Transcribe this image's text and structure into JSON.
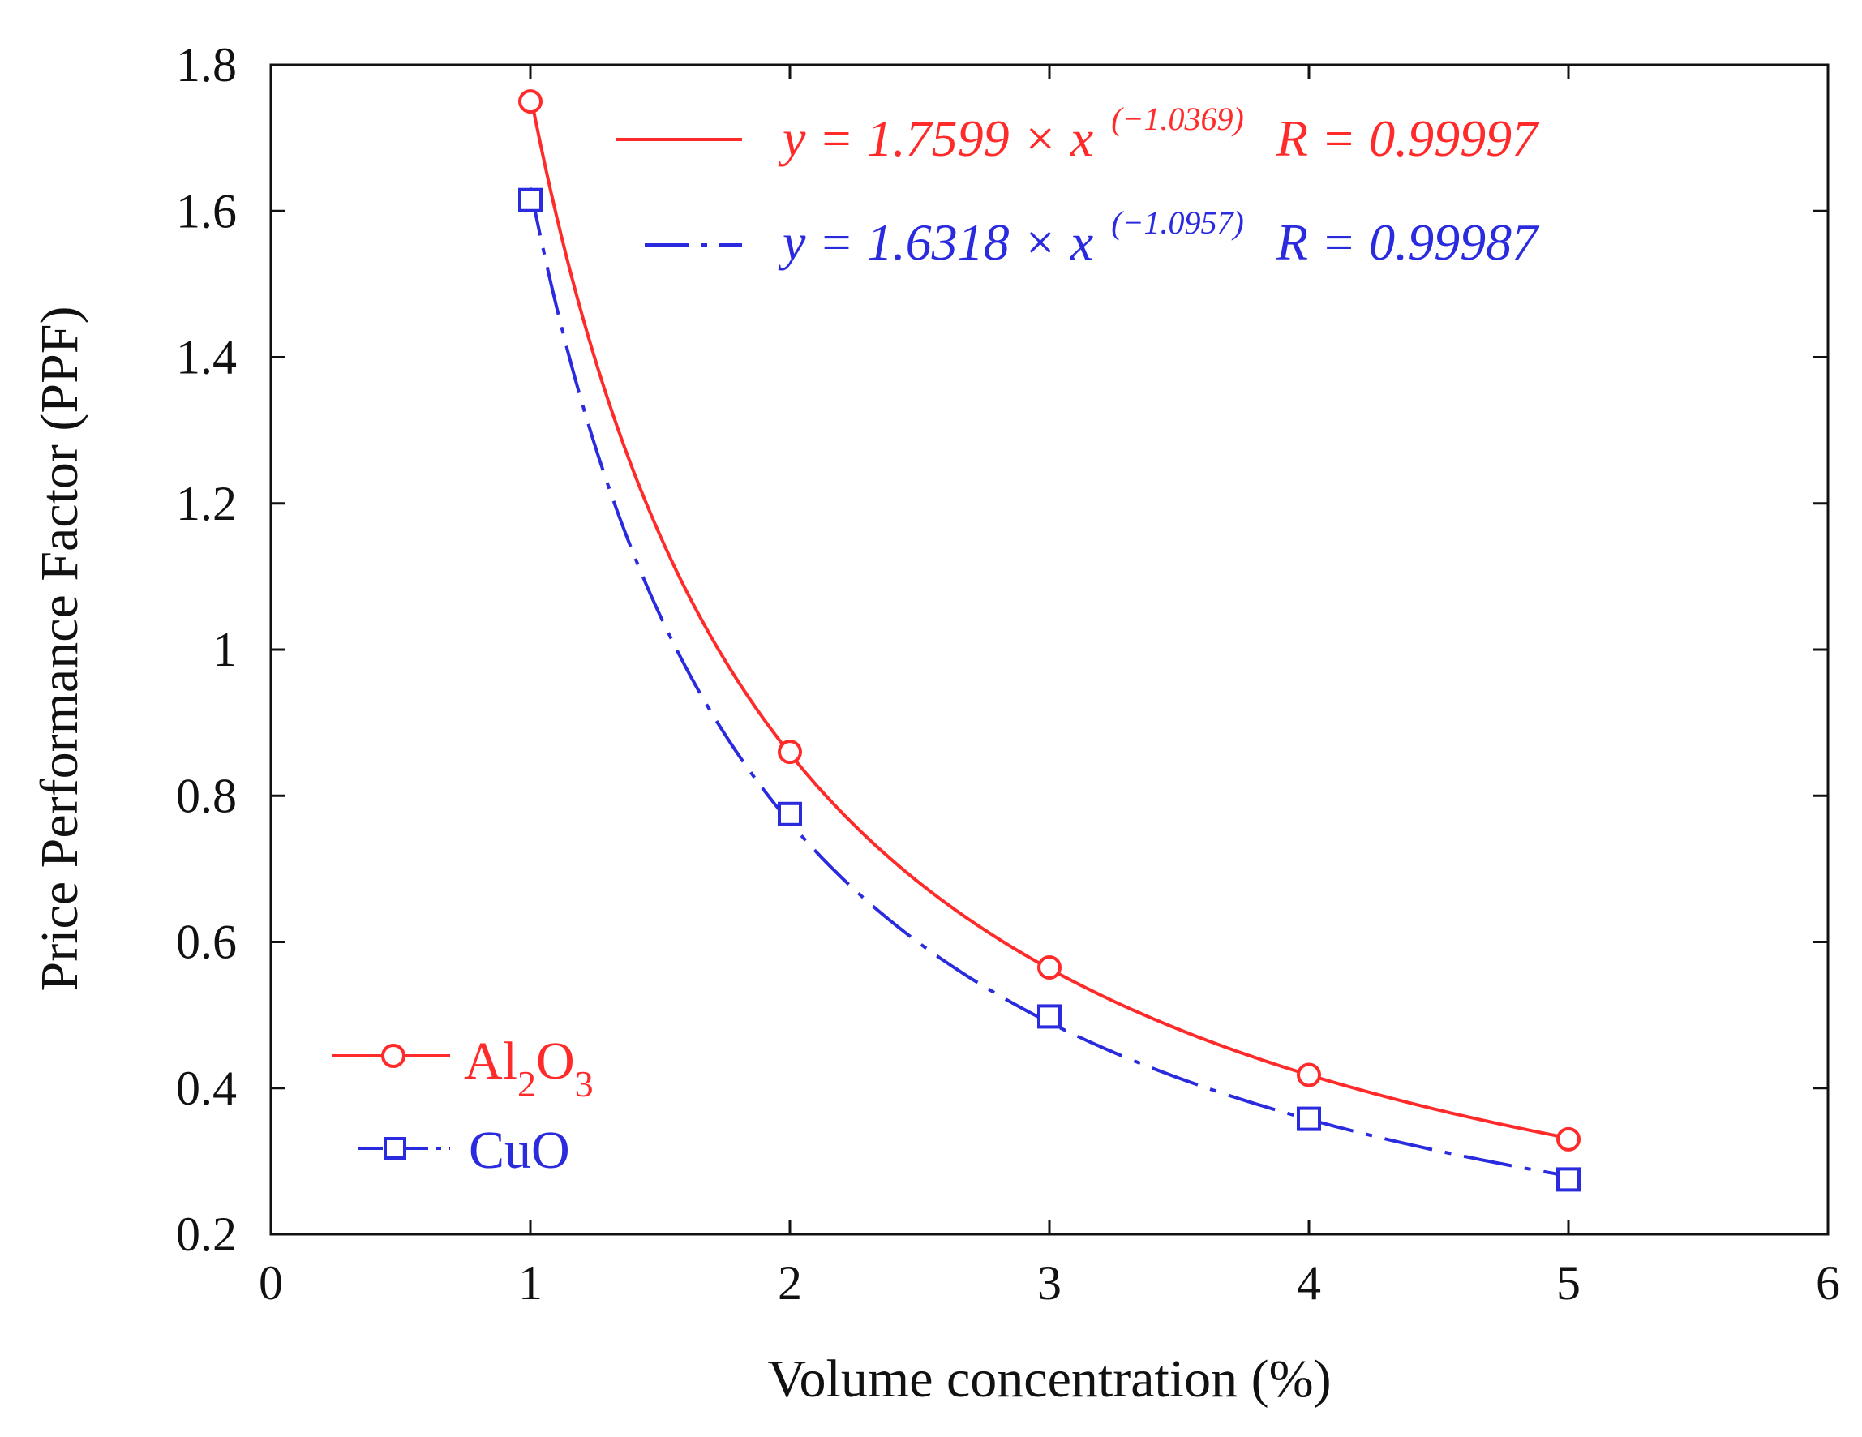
{
  "chart_data": {
    "type": "line",
    "xlabel": "Volume concentration (%)",
    "ylabel": "Price Performance Factor (PPF)",
    "xlim": [
      0,
      6
    ],
    "ylim": [
      0.2,
      1.8
    ],
    "xticks": [
      0,
      1,
      2,
      3,
      4,
      5,
      6
    ],
    "yticks": [
      0.2,
      0.4,
      0.6,
      0.8,
      1,
      1.2,
      1.4,
      1.6,
      1.8
    ],
    "xtick_labels": [
      "0",
      "1",
      "2",
      "3",
      "4",
      "5",
      "6"
    ],
    "ytick_labels": [
      "0.2",
      "0.4",
      "0.6",
      "0.8",
      "1",
      "1.2",
      "1.4",
      "1.6",
      "1.8"
    ],
    "series": [
      {
        "name": "Al2O3",
        "name_main": "Al",
        "name_sub1": "2",
        "name_mid": "O",
        "name_sub2": "3",
        "color": "#ff2a2a",
        "marker": "circle",
        "line_style": "solid",
        "x": [
          1,
          2,
          3,
          4,
          5
        ],
        "values": [
          1.75,
          0.86,
          0.565,
          0.418,
          0.33
        ],
        "fit": {
          "a": 1.7599,
          "b": -1.0369,
          "y_part": "y = 1.7599 × x",
          "exponent": "(−1.0369)",
          "r_text": "R = 0.99997"
        }
      },
      {
        "name": "CuO",
        "color": "#2a2adf",
        "marker": "square",
        "line_style": "dashdot",
        "x": [
          1,
          2,
          3,
          4,
          5
        ],
        "values": [
          1.615,
          0.775,
          0.498,
          0.358,
          0.275
        ],
        "fit": {
          "a": 1.6318,
          "b": -1.0957,
          "y_part": "y = 1.6318 × x",
          "exponent": "(−1.0957)",
          "r_text": "R = 0.99987"
        }
      }
    ],
    "legend_position": "bottom-left",
    "equations_position": "top-right"
  }
}
